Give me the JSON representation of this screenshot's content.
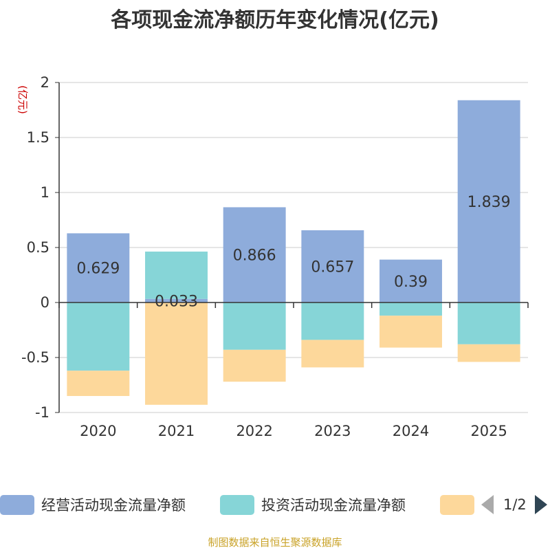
{
  "chart_data": {
    "type": "bar",
    "stacked": true,
    "title": "各项现金流净额历年变化情况(亿元)",
    "ylabel": "(亿元)",
    "categories": [
      "2020",
      "2021",
      "2022",
      "2023",
      "2024",
      "2025"
    ],
    "ylim": [
      -1,
      2
    ],
    "yticks": [
      "2",
      "1.5",
      "1",
      "0.5",
      "0",
      "-0.5",
      "-1"
    ],
    "series": [
      {
        "name": "经营活动现金流量净额",
        "color": "#8eacdb",
        "values": [
          0.629,
          0.033,
          0.866,
          0.657,
          0.39,
          1.839
        ],
        "labels": [
          "0.629",
          "0.033",
          "0.866",
          "0.657",
          "0.39",
          "1.839"
        ]
      },
      {
        "name": "投资活动现金流量净额",
        "color": "#86d5d7",
        "values": [
          -0.62,
          0.43,
          -0.43,
          -0.34,
          -0.12,
          -0.38
        ]
      },
      {
        "name": "",
        "color": "#fdd89b",
        "values": [
          -0.23,
          -0.93,
          -0.29,
          -0.25,
          -0.29,
          -0.16
        ]
      }
    ],
    "legend_position": "bottom"
  },
  "legend": {
    "page_text": "1/2"
  },
  "source": "制图数据来自恒生聚源数据库"
}
